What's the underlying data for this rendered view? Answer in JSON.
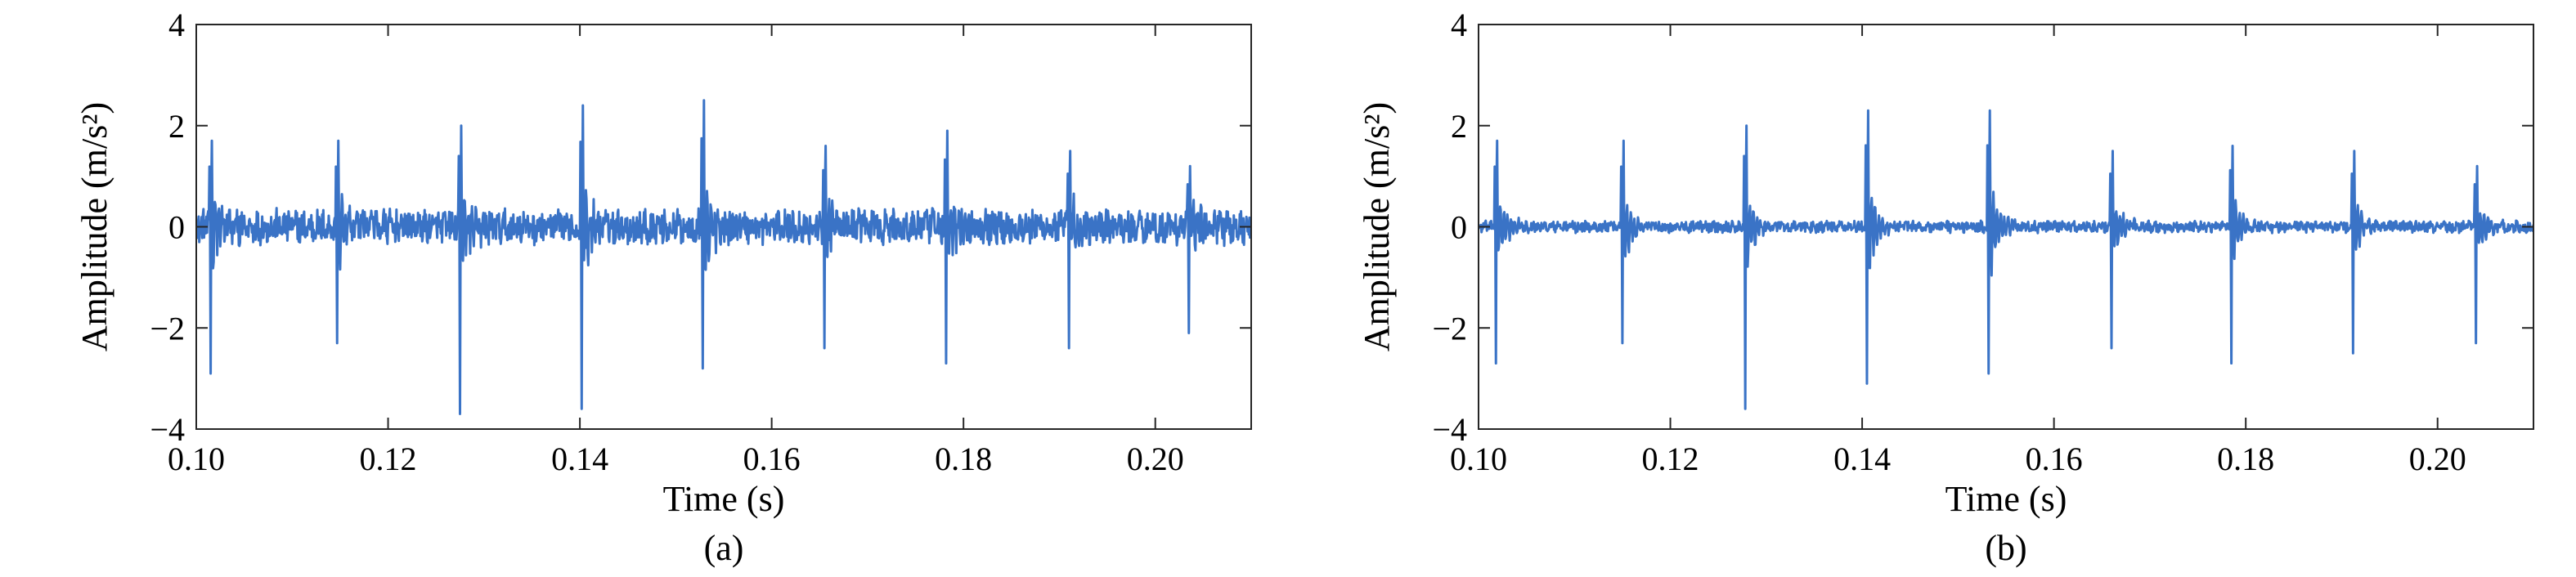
{
  "chart_data": [
    {
      "type": "line",
      "panel_label": "(a)",
      "xlabel": "Time (s)",
      "ylabel": "Amplitude (m/s²)",
      "xlim": [
        0.1,
        0.21
      ],
      "ylim": [
        -4,
        4
      ],
      "x_ticks": [
        0.1,
        0.12,
        0.14,
        0.16,
        0.18,
        0.2
      ],
      "x_tick_labels": [
        "0.10",
        "0.12",
        "0.14",
        "0.16",
        "0.18",
        "0.20"
      ],
      "y_ticks": [
        -4,
        -2,
        0,
        2,
        4
      ],
      "y_tick_labels": [
        "−4",
        "−2",
        "0",
        "2",
        "4"
      ],
      "grid": false,
      "line_color": "#3a73c6",
      "signal": {
        "sample_interval_s": 6.25e-05,
        "baseline_noise_amplitude": 0.3,
        "impulses": [
          {
            "t": 0.1015,
            "peak_pos": 1.7,
            "peak_neg": -2.9
          },
          {
            "t": 0.1147,
            "peak_pos": 1.7,
            "peak_neg": -2.3
          },
          {
            "t": 0.1275,
            "peak_pos": 2.0,
            "peak_neg": -3.7
          },
          {
            "t": 0.1402,
            "peak_pos": 2.4,
            "peak_neg": -3.6
          },
          {
            "t": 0.1528,
            "peak_pos": 2.5,
            "peak_neg": -2.8
          },
          {
            "t": 0.1655,
            "peak_pos": 1.6,
            "peak_neg": -2.4
          },
          {
            "t": 0.1782,
            "peak_pos": 1.9,
            "peak_neg": -2.7
          },
          {
            "t": 0.191,
            "peak_pos": 1.5,
            "peak_neg": -2.4
          },
          {
            "t": 0.2035,
            "peak_pos": 1.2,
            "peak_neg": -2.1
          }
        ]
      }
    },
    {
      "type": "line",
      "panel_label": "(b)",
      "xlabel": "Time (s)",
      "ylabel": "Amplitude (m/s²)",
      "xlim": [
        0.1,
        0.21
      ],
      "ylim": [
        -4,
        4
      ],
      "x_ticks": [
        0.1,
        0.12,
        0.14,
        0.16,
        0.18,
        0.2
      ],
      "x_tick_labels": [
        "0.10",
        "0.12",
        "0.14",
        "0.16",
        "0.18",
        "0.20"
      ],
      "y_ticks": [
        -4,
        -2,
        0,
        2,
        4
      ],
      "y_tick_labels": [
        "−4",
        "−2",
        "0",
        "2",
        "4"
      ],
      "grid": false,
      "line_color": "#3a73c6",
      "signal": {
        "sample_interval_s": 6.25e-05,
        "baseline_noise_amplitude": 0.1,
        "impulses": [
          {
            "t": 0.1018,
            "peak_pos": 1.7,
            "peak_neg": -2.7
          },
          {
            "t": 0.115,
            "peak_pos": 1.7,
            "peak_neg": -2.3
          },
          {
            "t": 0.1278,
            "peak_pos": 2.0,
            "peak_neg": -3.6
          },
          {
            "t": 0.1405,
            "peak_pos": 2.3,
            "peak_neg": -3.1
          },
          {
            "t": 0.1532,
            "peak_pos": 2.3,
            "peak_neg": -2.9
          },
          {
            "t": 0.166,
            "peak_pos": 1.5,
            "peak_neg": -2.4
          },
          {
            "t": 0.1785,
            "peak_pos": 1.6,
            "peak_neg": -2.7
          },
          {
            "t": 0.1912,
            "peak_pos": 1.5,
            "peak_neg": -2.5
          },
          {
            "t": 0.204,
            "peak_pos": 1.2,
            "peak_neg": -2.3
          }
        ]
      }
    }
  ]
}
